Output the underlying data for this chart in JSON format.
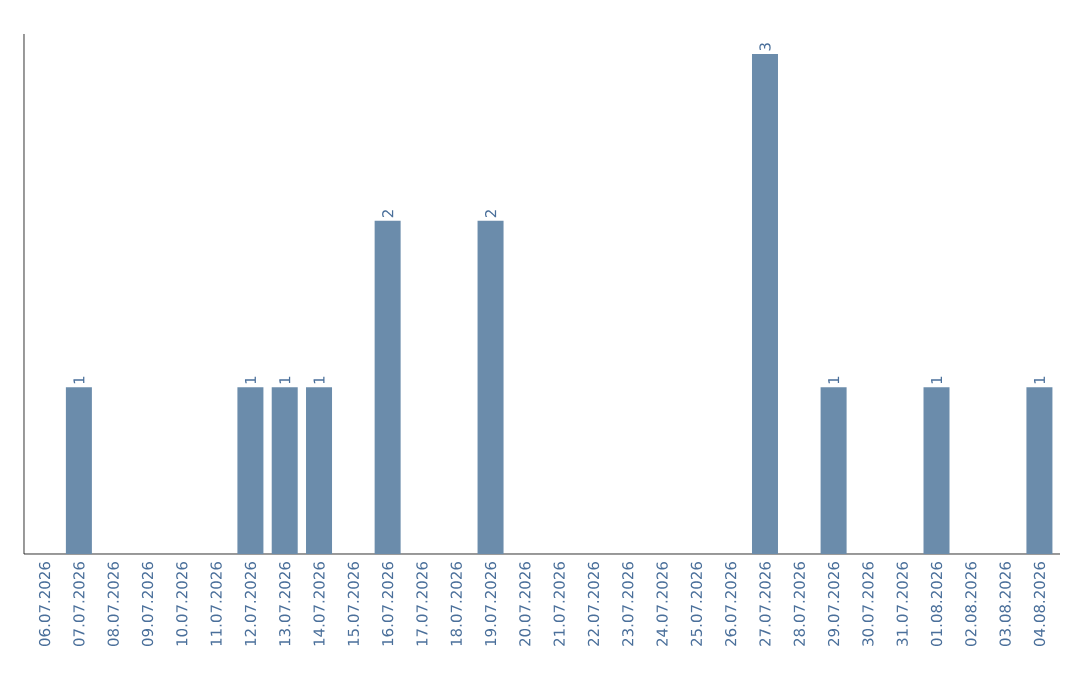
{
  "chart_data": {
    "type": "bar",
    "categories": [
      "06.07.2026",
      "07.07.2026",
      "08.07.2026",
      "09.07.2026",
      "10.07.2026",
      "11.07.2026",
      "12.07.2026",
      "13.07.2026",
      "14.07.2026",
      "15.07.2026",
      "16.07.2026",
      "17.07.2026",
      "18.07.2026",
      "19.07.2026",
      "20.07.2026",
      "21.07.2026",
      "22.07.2026",
      "23.07.2026",
      "24.07.2026",
      "25.07.2026",
      "26.07.2026",
      "27.07.2026",
      "28.07.2026",
      "29.07.2026",
      "30.07.2026",
      "31.07.2026",
      "01.08.2026",
      "02.08.2026",
      "03.08.2026",
      "04.08.2026"
    ],
    "values": [
      0,
      1,
      0,
      0,
      0,
      0,
      1,
      1,
      1,
      0,
      2,
      0,
      0,
      2,
      0,
      0,
      0,
      0,
      0,
      0,
      0,
      3,
      0,
      1,
      0,
      0,
      1,
      0,
      0,
      1
    ],
    "value_labels": [
      null,
      "1",
      null,
      null,
      null,
      null,
      "1",
      "1",
      "1",
      null,
      "2",
      null,
      null,
      "2",
      null,
      null,
      null,
      null,
      null,
      null,
      null,
      "3",
      null,
      "1",
      null,
      null,
      "1",
      null,
      null,
      "1"
    ],
    "color": "#6b8cab",
    "tick_labels": "x"
  }
}
